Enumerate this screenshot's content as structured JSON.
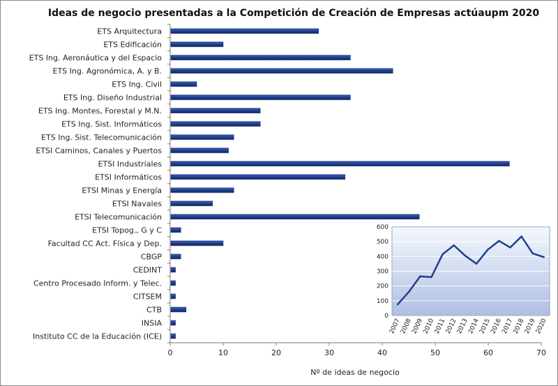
{
  "chart_data": [
    {
      "type": "bar",
      "orientation": "horizontal",
      "title": "Ideas de negocio presentadas a la Competición de Creación de Empresas actúaupm 2020",
      "xlabel": "Nº de ideas de negocio",
      "ylabel": "",
      "xlim": [
        0,
        70
      ],
      "xticks": [
        0,
        10,
        20,
        30,
        40,
        50,
        60,
        70
      ],
      "grid": false,
      "bar_color": "#1f3f8a",
      "categories": [
        "ETS Arquitectura",
        "ETS Edificación",
        "ETS Ing. Aeronáutica y del Espacio",
        "ETS Ing. Agronómica, A. y B.",
        "ETS Ing. Civil",
        "ETS Ing. Diseño Industrial",
        "ETS Ing. Montes, Forestal y M.N.",
        "ETS Ing. Sist. Informáticos",
        "ETS Ing. Sist. Telecomunicación",
        "ETSI Caminos, Canales y Puertos",
        "ETSI Industriales",
        "ETSI Informáticos",
        "ETSI Minas y Energía",
        "ETSI Navales",
        "ETSI Telecomunicación",
        "ETSI Topog., G y C",
        "Facultad CC Act. Física y Dep.",
        "CBGP",
        "CEDINT",
        "Centro Procesado Inform. y Telec.",
        "CITSEM",
        "CTB",
        "INSIA",
        "Instituto CC de la Educación (ICE)"
      ],
      "values": [
        28,
        10,
        34,
        42,
        5,
        34,
        17,
        17,
        12,
        11,
        64,
        33,
        12,
        8,
        47,
        2,
        10,
        2,
        1,
        1,
        1,
        3,
        1,
        1
      ]
    },
    {
      "type": "line",
      "title": "",
      "xlabel": "",
      "ylabel": "",
      "ylim": [
        0,
        600
      ],
      "yticks": [
        0,
        100,
        200,
        300,
        400,
        500,
        600
      ],
      "x": [
        "2007",
        "2008",
        "2009",
        "2010",
        "2011",
        "2012",
        "2013",
        "2014",
        "2015",
        "2016",
        "2017",
        "2018",
        "2019",
        "2020"
      ],
      "values": [
        75,
        160,
        265,
        260,
        415,
        475,
        405,
        350,
        445,
        505,
        460,
        535,
        420,
        395
      ],
      "line_color": "#1f3f8a",
      "background_gradient": [
        "#f4f8fd",
        "#aebfe3"
      ],
      "grid": true
    }
  ]
}
